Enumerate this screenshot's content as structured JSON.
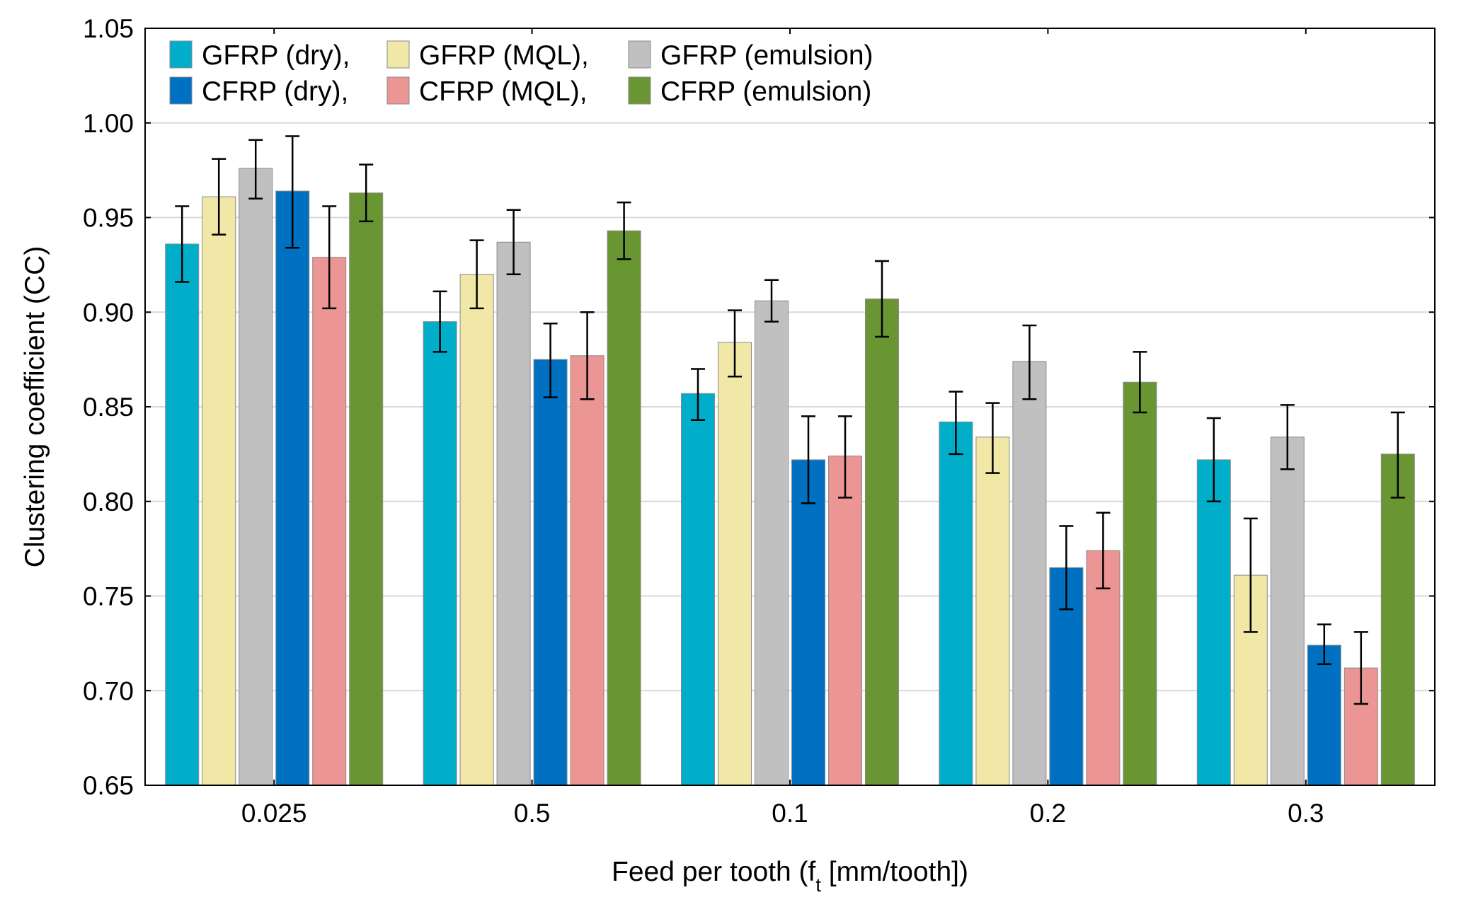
{
  "chart_data": {
    "type": "bar",
    "title": "",
    "xlabel": "Feed per tooth (f",
    "xlabel_sub": "t",
    "xlabel_rest": " [mm/tooth])",
    "ylabel": "Clustering coefficient (CC)",
    "ylim": [
      0.65,
      1.05
    ],
    "yticks": [
      "0.65",
      "0.70",
      "0.75",
      "0.80",
      "0.85",
      "0.90",
      "0.95",
      "1.00",
      "1.05"
    ],
    "grid": "horizontal",
    "legend_position": "top-left",
    "categories": [
      "0.025",
      "0.5",
      "0.1",
      "0.2",
      "0.3"
    ],
    "series": [
      {
        "name": "GFRP (dry),",
        "color": "#00AECA",
        "values": [
          0.936,
          0.895,
          0.857,
          0.842,
          0.822
        ],
        "err_low": [
          0.916,
          0.879,
          0.843,
          0.825,
          0.8
        ],
        "err_high": [
          0.956,
          0.911,
          0.87,
          0.858,
          0.844
        ]
      },
      {
        "name": "GFRP (MQL),",
        "color": "#F1E8A8",
        "values": [
          0.961,
          0.92,
          0.884,
          0.834,
          0.761
        ],
        "err_low": [
          0.941,
          0.902,
          0.866,
          0.815,
          0.731
        ],
        "err_high": [
          0.981,
          0.938,
          0.901,
          0.852,
          0.791
        ]
      },
      {
        "name": "GFRP (emulsion)",
        "color": "#C0C0C0",
        "values": [
          0.976,
          0.937,
          0.906,
          0.874,
          0.834
        ],
        "err_low": [
          0.96,
          0.92,
          0.895,
          0.854,
          0.817
        ],
        "err_high": [
          0.991,
          0.954,
          0.917,
          0.893,
          0.851
        ]
      },
      {
        "name": "CFRP (dry),",
        "color": "#0070C0",
        "values": [
          0.964,
          0.875,
          0.822,
          0.765,
          0.724
        ],
        "err_low": [
          0.934,
          0.855,
          0.799,
          0.743,
          0.714
        ],
        "err_high": [
          0.993,
          0.894,
          0.845,
          0.787,
          0.735
        ]
      },
      {
        "name": "CFRP (MQL),",
        "color": "#EB9595",
        "values": [
          0.929,
          0.877,
          0.824,
          0.774,
          0.712
        ],
        "err_low": [
          0.902,
          0.854,
          0.802,
          0.754,
          0.693
        ],
        "err_high": [
          0.956,
          0.9,
          0.845,
          0.794,
          0.731
        ]
      },
      {
        "name": "CFRP (emulsion)",
        "color": "#6A9533",
        "values": [
          0.963,
          0.943,
          0.907,
          0.863,
          0.825
        ],
        "err_low": [
          0.948,
          0.928,
          0.887,
          0.847,
          0.802
        ],
        "err_high": [
          0.978,
          0.958,
          0.927,
          0.879,
          0.847
        ]
      }
    ]
  }
}
